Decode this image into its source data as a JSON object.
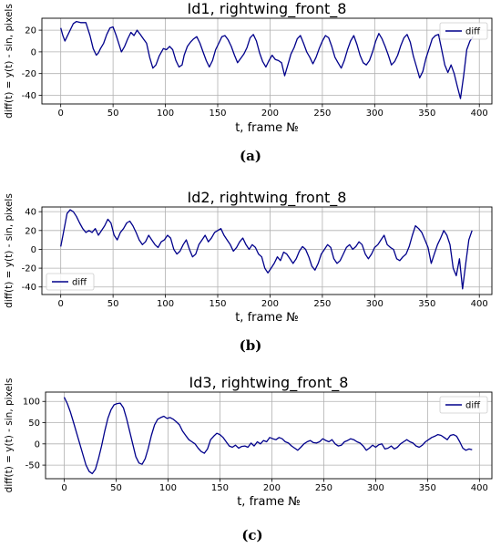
{
  "series_color": "#00008b",
  "grid_color": "#b0b0b0",
  "chart_data": [
    {
      "type": "line",
      "title": "Id1, rightwing_front_8",
      "xlabel": "t, frame №",
      "ylabel": "diff(t) = y(t) - sin, pixels",
      "xlim": [
        -18,
        412
      ],
      "ylim": [
        -48,
        31
      ],
      "xticks": [
        0,
        50,
        100,
        150,
        200,
        250,
        300,
        350,
        400
      ],
      "yticks": [
        -40,
        -20,
        0,
        20
      ],
      "grid": true,
      "legend": {
        "position": "top-right",
        "entries": [
          "diff"
        ]
      },
      "caption": "(a)",
      "series": [
        {
          "name": "diff",
          "x": [
            0,
            2,
            4,
            6,
            9,
            12,
            15,
            19,
            24,
            28,
            31,
            34,
            36,
            38,
            41,
            44,
            47,
            50,
            53,
            56,
            58,
            61,
            64,
            67,
            70,
            73,
            76,
            79,
            82,
            85,
            88,
            91,
            94,
            98,
            101,
            104,
            107,
            110,
            113,
            116,
            118,
            121,
            124,
            127,
            130,
            133,
            136,
            139,
            142,
            145,
            148,
            151,
            154,
            157,
            160,
            163,
            166,
            169,
            172,
            175,
            178,
            181,
            184,
            187,
            190,
            193,
            196,
            199,
            202,
            205,
            208,
            211,
            214,
            217,
            220,
            223,
            226,
            229,
            232,
            235,
            238,
            241,
            244,
            247,
            250,
            253,
            256,
            259,
            262,
            265,
            268,
            271,
            274,
            277,
            280,
            283,
            286,
            289,
            292,
            295,
            298,
            301,
            304,
            307,
            310,
            313,
            316,
            319,
            322,
            325,
            328,
            331,
            334,
            337,
            340,
            343,
            346,
            349,
            352,
            355,
            358,
            361,
            364,
            367,
            370,
            373,
            376,
            379,
            382,
            385,
            388,
            391,
            394
          ],
          "y": [
            22,
            15,
            10,
            14,
            20,
            26,
            28,
            27,
            27,
            15,
            3,
            -3,
            -1,
            3,
            8,
            16,
            22,
            23,
            15,
            6,
            0,
            5,
            12,
            18,
            15,
            20,
            16,
            12,
            8,
            -5,
            -15,
            -12,
            -4,
            3,
            2,
            5,
            2,
            -8,
            -14,
            -12,
            -3,
            5,
            9,
            12,
            14,
            8,
            0,
            -8,
            -14,
            -8,
            2,
            8,
            14,
            15,
            11,
            5,
            -3,
            -10,
            -6,
            -2,
            4,
            13,
            16,
            10,
            -1,
            -9,
            -14,
            -8,
            -3,
            -7,
            -8,
            -10,
            -22,
            -12,
            -2,
            4,
            12,
            15,
            8,
            0,
            -5,
            -11,
            -5,
            3,
            10,
            15,
            13,
            5,
            -5,
            -10,
            -15,
            -8,
            2,
            10,
            15,
            7,
            -3,
            -10,
            -12,
            -8,
            0,
            10,
            17,
            12,
            5,
            -3,
            -12,
            -9,
            -3,
            6,
            13,
            16,
            9,
            -4,
            -14,
            -24,
            -18,
            -6,
            3,
            12,
            15,
            16,
            2,
            -12,
            -19,
            -12,
            -20,
            -32,
            -43,
            -22,
            2,
            10,
            14
          ]
        }
      ]
    },
    {
      "type": "line",
      "title": "Id2, rightwing_front_8",
      "xlabel": "t, frame №",
      "ylabel": "diff(t) = y(t) - sin, pixels",
      "xlim": [
        -18,
        412
      ],
      "ylim": [
        -48,
        45
      ],
      "xticks": [
        0,
        50,
        100,
        150,
        200,
        250,
        300,
        350,
        400
      ],
      "yticks": [
        -40,
        -20,
        0,
        20,
        40
      ],
      "grid": true,
      "legend": {
        "position": "bottom-left",
        "entries": [
          "diff"
        ]
      },
      "caption": "(b)",
      "series": [
        {
          "name": "diff",
          "x": [
            0,
            3,
            6,
            9,
            12,
            15,
            18,
            21,
            24,
            27,
            30,
            33,
            36,
            39,
            42,
            45,
            48,
            51,
            54,
            57,
            60,
            63,
            66,
            69,
            72,
            75,
            78,
            81,
            84,
            87,
            90,
            93,
            96,
            99,
            102,
            105,
            108,
            111,
            114,
            117,
            120,
            123,
            126,
            129,
            132,
            135,
            138,
            141,
            144,
            147,
            150,
            153,
            156,
            159,
            162,
            165,
            168,
            171,
            174,
            177,
            180,
            183,
            186,
            189,
            192,
            195,
            198,
            201,
            204,
            207,
            210,
            213,
            216,
            219,
            222,
            225,
            228,
            231,
            234,
            237,
            240,
            243,
            246,
            249,
            252,
            255,
            258,
            261,
            264,
            267,
            270,
            273,
            276,
            279,
            282,
            285,
            288,
            291,
            294,
            297,
            300,
            303,
            306,
            309,
            312,
            315,
            318,
            321,
            324,
            327,
            330,
            333,
            336,
            339,
            342,
            345,
            348,
            351,
            354,
            357,
            360,
            363,
            366,
            369,
            372,
            375,
            378,
            381,
            384,
            387,
            390,
            393
          ],
          "y": [
            3,
            20,
            38,
            42,
            40,
            35,
            28,
            22,
            18,
            20,
            18,
            22,
            15,
            20,
            25,
            32,
            28,
            15,
            10,
            18,
            22,
            28,
            30,
            25,
            18,
            10,
            5,
            8,
            15,
            10,
            5,
            2,
            8,
            10,
            15,
            12,
            0,
            -5,
            -2,
            5,
            10,
            0,
            -8,
            -5,
            5,
            10,
            15,
            8,
            12,
            18,
            20,
            22,
            15,
            10,
            5,
            -2,
            2,
            8,
            12,
            5,
            0,
            5,
            2,
            -5,
            -8,
            -20,
            -25,
            -20,
            -15,
            -8,
            -12,
            -3,
            -5,
            -10,
            -15,
            -10,
            -2,
            3,
            0,
            -8,
            -18,
            -22,
            -15,
            -5,
            0,
            5,
            2,
            -10,
            -15,
            -12,
            -5,
            2,
            5,
            0,
            3,
            8,
            5,
            -5,
            -10,
            -5,
            2,
            5,
            10,
            15,
            5,
            2,
            0,
            -10,
            -12,
            -8,
            -5,
            3,
            15,
            25,
            22,
            18,
            10,
            2,
            -15,
            -5,
            5,
            12,
            20,
            15,
            5,
            -20,
            -28,
            -10,
            -42,
            -15,
            10,
            20
          ]
        }
      ]
    },
    {
      "type": "line",
      "title": "Id3, rightwing_front_8",
      "xlabel": "t, frame №",
      "ylabel": "diff(t) = y(t) - sin, pixels",
      "xlim": [
        -18,
        412
      ],
      "ylim": [
        -82,
        122
      ],
      "xticks": [
        0,
        50,
        100,
        150,
        200,
        250,
        300,
        350,
        400
      ],
      "yticks": [
        -50,
        0,
        50,
        100
      ],
      "grid": true,
      "legend": {
        "position": "top-right",
        "entries": [
          "diff"
        ]
      },
      "caption": "(c)",
      "series": [
        {
          "name": "diff",
          "x": [
            0,
            3,
            6,
            9,
            12,
            15,
            18,
            21,
            24,
            27,
            30,
            33,
            36,
            39,
            42,
            45,
            48,
            51,
            54,
            57,
            60,
            63,
            66,
            69,
            72,
            75,
            78,
            81,
            84,
            87,
            90,
            93,
            96,
            99,
            102,
            105,
            108,
            111,
            114,
            117,
            120,
            123,
            126,
            129,
            132,
            135,
            138,
            141,
            144,
            147,
            150,
            153,
            156,
            159,
            162,
            165,
            168,
            171,
            174,
            177,
            180,
            183,
            186,
            189,
            192,
            195,
            198,
            201,
            204,
            207,
            210,
            213,
            216,
            219,
            222,
            225,
            228,
            231,
            234,
            237,
            240,
            243,
            246,
            249,
            252,
            255,
            258,
            261,
            264,
            267,
            270,
            273,
            276,
            279,
            282,
            285,
            288,
            291,
            294,
            297,
            300,
            303,
            306,
            309,
            312,
            315,
            318,
            321,
            324,
            327,
            330,
            333,
            336,
            339,
            342,
            345,
            348,
            351,
            354,
            357,
            360,
            363,
            366,
            369,
            372,
            375,
            378,
            381,
            384,
            387,
            390,
            393
          ],
          "y": [
            110,
            95,
            75,
            50,
            25,
            0,
            -25,
            -50,
            -65,
            -70,
            -60,
            -35,
            -5,
            30,
            60,
            80,
            92,
            95,
            96,
            85,
            60,
            30,
            0,
            -30,
            -45,
            -48,
            -35,
            -10,
            20,
            45,
            58,
            62,
            65,
            60,
            62,
            58,
            52,
            45,
            30,
            20,
            10,
            5,
            0,
            -10,
            -18,
            -22,
            -12,
            10,
            18,
            25,
            22,
            15,
            5,
            -5,
            -8,
            -3,
            -10,
            -6,
            -5,
            -8,
            2,
            -5,
            5,
            0,
            8,
            5,
            15,
            12,
            10,
            15,
            12,
            5,
            2,
            -5,
            -10,
            -15,
            -8,
            0,
            5,
            8,
            3,
            2,
            5,
            12,
            8,
            5,
            10,
            0,
            -5,
            -3,
            5,
            8,
            12,
            10,
            5,
            2,
            -5,
            -15,
            -10,
            -3,
            -8,
            -2,
            0,
            -12,
            -10,
            -5,
            -12,
            -8,
            0,
            5,
            10,
            5,
            2,
            -5,
            -8,
            -3,
            5,
            10,
            15,
            18,
            22,
            20,
            15,
            10,
            20,
            22,
            18,
            5,
            -10,
            -15,
            -12,
            -14
          ]
        }
      ]
    }
  ]
}
